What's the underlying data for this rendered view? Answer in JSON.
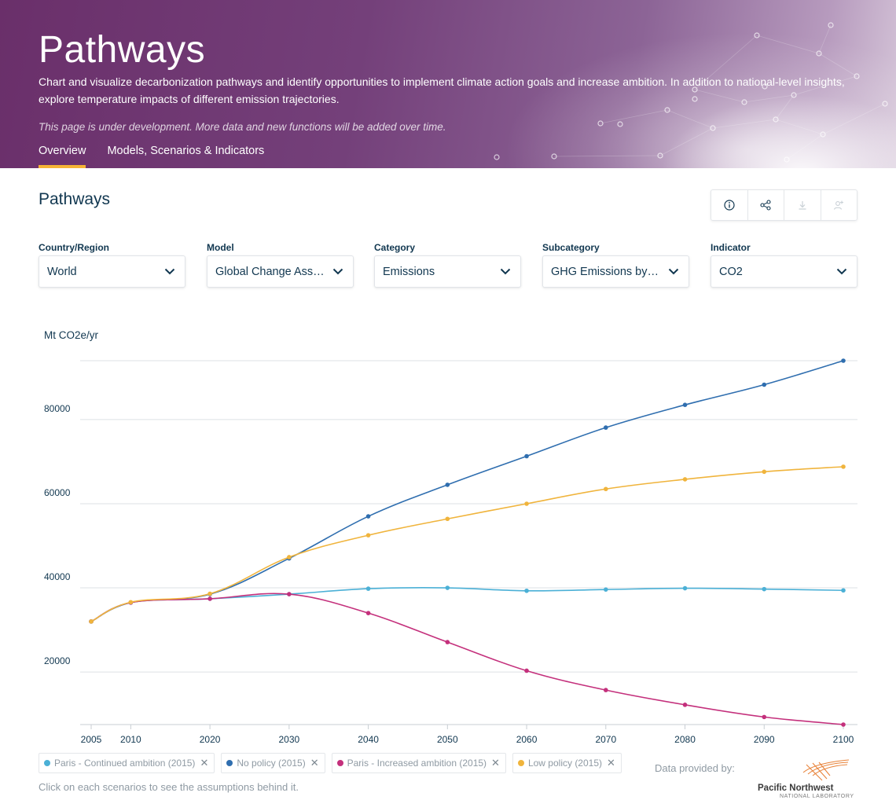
{
  "hero": {
    "title": "Pathways",
    "description": "Chart and visualize decarbonization pathways and identify opportunities to implement climate action goals and increase ambition. In addition to national-level insights, explore temperature impacts of different emission trajectories.",
    "note": "This page is under development. More data and new functions will be added over time.",
    "tabs": [
      {
        "label": "Overview",
        "active": true
      },
      {
        "label": "Models, Scenarios & Indicators",
        "active": false
      }
    ]
  },
  "section": {
    "title": "Pathways"
  },
  "toolbar": {
    "icons": [
      "info-icon",
      "share-icon",
      "download-icon",
      "add-to-user-icon"
    ]
  },
  "filters": [
    {
      "label": "Country/Region",
      "value": "World"
    },
    {
      "label": "Model",
      "value": "Global Change Assessment Model"
    },
    {
      "label": "Category",
      "value": "Emissions"
    },
    {
      "label": "Subcategory",
      "value": "GHG Emissions by gas"
    },
    {
      "label": "Indicator",
      "value": "CO2"
    }
  ],
  "chart_data": {
    "type": "line",
    "title": "",
    "ylabel": "Mt CO2e/yr",
    "xlabel": "",
    "x": [
      2005,
      2010,
      2020,
      2030,
      2040,
      2050,
      2060,
      2070,
      2080,
      2090,
      2100
    ],
    "yticks": [
      20000,
      40000,
      60000,
      80000
    ],
    "ylim": [
      7500,
      94000
    ],
    "xlim": [
      2005,
      2100
    ],
    "grid": true,
    "series": [
      {
        "name": "Paris - Continued ambition (2015)",
        "color": "#4bb0d6",
        "values": [
          32000,
          36500,
          37400,
          38500,
          39800,
          40000,
          39300,
          39600,
          39900,
          39700,
          39400
        ]
      },
      {
        "name": "No policy (2015)",
        "color": "#2f6eaf",
        "values": [
          32000,
          36500,
          38500,
          47000,
          57000,
          64500,
          71300,
          78100,
          83500,
          88300,
          94000
        ]
      },
      {
        "name": "Paris - Increased ambition (2015)",
        "color": "#c4307c",
        "values": [
          32000,
          36500,
          37400,
          38500,
          34000,
          27100,
          20300,
          15700,
          12200,
          9300,
          7500
        ]
      },
      {
        "name": "Low policy (2015)",
        "color": "#f0b43c",
        "values": [
          32000,
          36600,
          38600,
          47300,
          52500,
          56400,
          60000,
          63500,
          65800,
          67600,
          68800
        ]
      }
    ]
  },
  "footer": {
    "hint": "Click on each scenarios to see the assumptions behind it.",
    "provided_by": "Data provided by:",
    "logo_name": "Pacific Northwest",
    "logo_sub": "NATIONAL LABORATORY"
  }
}
